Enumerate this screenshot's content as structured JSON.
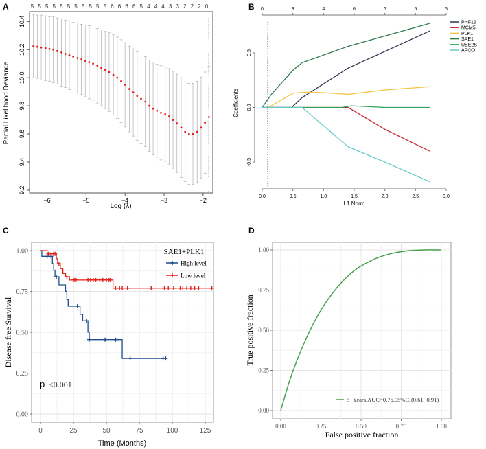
{
  "panel_labels": [
    "A",
    "B",
    "C",
    "D"
  ],
  "chart_data": [
    {
      "id": "A",
      "type": "scatter",
      "xlabel": "Log (λ)",
      "ylabel": "Partial Likelihood Deviance",
      "xlim": [
        -6.45,
        -1.75
      ],
      "ylim": [
        9.18,
        10.47
      ],
      "xticks": [
        -6,
        -5,
        -4,
        -3,
        -2
      ],
      "yticks": [
        9.2,
        9.4,
        9.6,
        9.8,
        10.0,
        10.2,
        10.4
      ],
      "top_axis_labels": [
        "5",
        "5",
        "5",
        "5",
        "5",
        "5",
        "5",
        "5",
        "5",
        "5",
        "5",
        "6",
        "6",
        "6",
        "6",
        "5",
        "4",
        "4",
        "4",
        "3",
        "3",
        "2",
        "2",
        "2",
        "0"
      ],
      "vlines": [
        -2.41,
        -1.86
      ],
      "point_color": "#e0201b",
      "errorbar_color": "#b8b8b8",
      "points": [
        [
          -6.35,
          10.225,
          0.225
        ],
        [
          -6.25,
          10.22,
          0.225
        ],
        [
          -6.15,
          10.215,
          0.23
        ],
        [
          -6.04,
          10.21,
          0.23
        ],
        [
          -5.94,
          10.205,
          0.23
        ],
        [
          -5.84,
          10.2,
          0.235
        ],
        [
          -5.74,
          10.19,
          0.235
        ],
        [
          -5.63,
          10.18,
          0.24
        ],
        [
          -5.53,
          10.17,
          0.24
        ],
        [
          -5.43,
          10.16,
          0.245
        ],
        [
          -5.33,
          10.15,
          0.245
        ],
        [
          -5.22,
          10.14,
          0.25
        ],
        [
          -5.12,
          10.13,
          0.25
        ],
        [
          -5.02,
          10.12,
          0.255
        ],
        [
          -4.92,
          10.11,
          0.26
        ],
        [
          -4.82,
          10.1,
          0.26
        ],
        [
          -4.71,
          10.085,
          0.265
        ],
        [
          -4.61,
          10.07,
          0.27
        ],
        [
          -4.51,
          10.055,
          0.275
        ],
        [
          -4.41,
          10.04,
          0.28
        ],
        [
          -4.3,
          10.02,
          0.285
        ],
        [
          -4.2,
          10.0,
          0.29
        ],
        [
          -4.1,
          9.975,
          0.295
        ],
        [
          -4.0,
          9.95,
          0.3
        ],
        [
          -3.89,
          9.92,
          0.305
        ],
        [
          -3.79,
          9.895,
          0.31
        ],
        [
          -3.69,
          9.87,
          0.315
        ],
        [
          -3.59,
          9.85,
          0.32
        ],
        [
          -3.48,
          9.83,
          0.32
        ],
        [
          -3.38,
          9.8,
          0.325
        ],
        [
          -3.28,
          9.78,
          0.33
        ],
        [
          -3.18,
          9.765,
          0.33
        ],
        [
          -3.08,
          9.75,
          0.335
        ],
        [
          -2.97,
          9.74,
          0.335
        ],
        [
          -2.87,
          9.725,
          0.34
        ],
        [
          -2.77,
          9.7,
          0.345
        ],
        [
          -2.67,
          9.675,
          0.35
        ],
        [
          -2.56,
          9.645,
          0.355
        ],
        [
          -2.46,
          9.615,
          0.355
        ],
        [
          -2.36,
          9.6,
          0.36
        ],
        [
          -2.26,
          9.6,
          0.36
        ],
        [
          -2.15,
          9.615,
          0.36
        ],
        [
          -2.05,
          9.645,
          0.36
        ],
        [
          -1.95,
          9.68,
          0.36
        ],
        [
          -1.85,
          9.72,
          0.36
        ]
      ]
    },
    {
      "id": "B",
      "type": "line",
      "xlabel": "L1 Norm",
      "ylabel": "Coefficients",
      "xlim": [
        0,
        3.0
      ],
      "ylim": [
        -0.73,
        0.82
      ],
      "xticks": [
        0.0,
        0.5,
        1.0,
        1.5,
        2.0,
        2.5,
        3.0
      ],
      "yticks": [
        -0.5,
        0.0,
        0.5
      ],
      "top_axis_labels": [
        "0",
        "3",
        "4",
        "6",
        "6",
        "5",
        "5"
      ],
      "vline": 0.09,
      "legend_position": "top-right",
      "series": [
        {
          "name": "PHF19",
          "color": "#2b3553",
          "points": [
            [
              0,
              0
            ],
            [
              0.48,
              0
            ],
            [
              0.65,
              0.09
            ],
            [
              1.4,
              0.36
            ],
            [
              2.73,
              0.7
            ]
          ]
        },
        {
          "name": "MCM5",
          "color": "#c9262c",
          "points": [
            [
              0,
              0
            ],
            [
              1.4,
              0
            ],
            [
              2.0,
              -0.2
            ],
            [
              2.73,
              -0.4
            ]
          ]
        },
        {
          "name": "PLK1",
          "color": "#f2c641",
          "points": [
            [
              0,
              0
            ],
            [
              0.1,
              0
            ],
            [
              0.5,
              0.13
            ],
            [
              0.7,
              0.14
            ],
            [
              1.0,
              0.135
            ],
            [
              1.4,
              0.12
            ],
            [
              2.0,
              0.16
            ],
            [
              2.73,
              0.19
            ]
          ]
        },
        {
          "name": "SAE1",
          "color": "#2e7b4f",
          "points": [
            [
              0,
              0
            ],
            [
              0.15,
              0.12
            ],
            [
              0.5,
              0.34
            ],
            [
              0.65,
              0.41
            ],
            [
              1.4,
              0.56
            ],
            [
              2.73,
              0.77
            ]
          ]
        },
        {
          "name": "UBE2S",
          "color": "#2fa35c",
          "points": [
            [
              0,
              0
            ],
            [
              1.3,
              0
            ],
            [
              1.45,
              0.015
            ],
            [
              2.0,
              0
            ],
            [
              2.73,
              0
            ]
          ]
        },
        {
          "name": "APOO",
          "color": "#66cbc8",
          "points": [
            [
              0,
              0
            ],
            [
              0.65,
              0
            ],
            [
              1.4,
              -0.36
            ],
            [
              2.0,
              -0.5
            ],
            [
              2.73,
              -0.68
            ]
          ]
        }
      ]
    },
    {
      "id": "C",
      "type": "line",
      "xlabel": "Time (Months)",
      "ylabel": "Disease free Survival",
      "xlim": [
        -6,
        130
      ],
      "ylim": [
        -0.05,
        1.05
      ],
      "xticks": [
        0,
        25,
        50,
        75,
        100,
        125
      ],
      "yticks": [
        "0.00",
        "0.25",
        "0.50",
        "0.75",
        "1.00"
      ],
      "legend_title": "SAE1+PLK1",
      "legend_position": "top-right",
      "annotation_p": "p",
      "annotation_value": "<0.001",
      "grid": true,
      "series": [
        {
          "name": "High level",
          "color": "#1f4e8c",
          "steps": [
            [
              0,
              1.0
            ],
            [
              1,
              0.965
            ],
            [
              9,
              0.92
            ],
            [
              10,
              0.88
            ],
            [
              11,
              0.84
            ],
            [
              14,
              0.79
            ],
            [
              19,
              0.75
            ],
            [
              20,
              0.7
            ],
            [
              21,
              0.66
            ],
            [
              30,
              0.61
            ],
            [
              32,
              0.57
            ],
            [
              36,
              0.5
            ],
            [
              37,
              0.455
            ],
            [
              62,
              0.34
            ]
          ],
          "end": 96,
          "censored": [
            5,
            8,
            12,
            28,
            35,
            37,
            49,
            57,
            68,
            93,
            95
          ]
        },
        {
          "name": "Low level",
          "color": "#e3211c",
          "steps": [
            [
              0,
              1.0
            ],
            [
              5,
              0.98
            ],
            [
              12,
              0.95
            ],
            [
              13,
              0.92
            ],
            [
              15,
              0.89
            ],
            [
              17,
              0.86
            ],
            [
              19,
              0.84
            ],
            [
              22,
              0.82
            ],
            [
              55,
              0.77
            ]
          ],
          "end": 130,
          "censored": [
            6,
            8,
            10,
            11,
            14,
            20,
            25,
            26,
            27,
            36,
            38,
            40,
            42,
            45,
            47,
            48,
            50,
            52,
            53,
            57,
            60,
            62,
            66,
            84,
            94,
            97,
            101,
            106,
            108,
            111,
            114,
            117,
            120,
            130
          ]
        }
      ]
    },
    {
      "id": "D",
      "type": "line",
      "xlabel": "False positive fraction",
      "ylabel": "True positive fraction",
      "xlim": [
        -0.05,
        1.05
      ],
      "ylim": [
        -0.05,
        1.05
      ],
      "xticks": [
        "0.00",
        "0.25",
        "0.50",
        "0.75",
        "1.00"
      ],
      "yticks": [
        "0.00",
        "0.25",
        "0.50",
        "0.75",
        "1.00"
      ],
      "grid": true,
      "legend_position": "bottom-right",
      "series": [
        {
          "name": "5−Years,AUC=0.76,95%CI(0.61−0.91)",
          "color": "#45a046",
          "points": [
            [
              0,
              0
            ],
            [
              0.05,
              0.17
            ],
            [
              0.1,
              0.31
            ],
            [
              0.15,
              0.43
            ],
            [
              0.2,
              0.535
            ],
            [
              0.25,
              0.625
            ],
            [
              0.3,
              0.7
            ],
            [
              0.35,
              0.765
            ],
            [
              0.4,
              0.82
            ],
            [
              0.45,
              0.865
            ],
            [
              0.5,
              0.9
            ],
            [
              0.6,
              0.95
            ],
            [
              0.7,
              0.98
            ],
            [
              0.8,
              0.995
            ],
            [
              0.9,
              1.0
            ],
            [
              1.0,
              1.0
            ]
          ]
        }
      ]
    }
  ]
}
